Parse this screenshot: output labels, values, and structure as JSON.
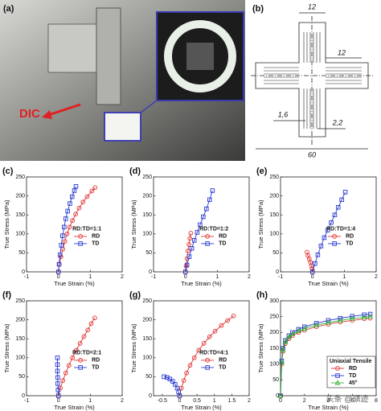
{
  "photo": {
    "label": "(a)",
    "annotation": "DIC"
  },
  "diagram": {
    "label": "(b)",
    "dimensions": [
      "12",
      "12",
      "1,6",
      "2,2",
      "60"
    ]
  },
  "watermark": "头条 @骐迹",
  "chart_data": [
    {
      "type": "line",
      "label": "(c)",
      "xlabel": "True Strain (%)",
      "ylabel": "True Stress (MPa)",
      "legend_title": "RD:TD=1:1",
      "legend": "center right",
      "xlim": [
        -1,
        2
      ],
      "xticks": [
        -1,
        0,
        1,
        2
      ],
      "ylim": [
        0,
        250
      ],
      "yticks": [
        0,
        50,
        100,
        150,
        200,
        250
      ],
      "series": [
        {
          "name": "RD",
          "color": "#e03030",
          "marker": "circle",
          "x": [
            0,
            0.03,
            0.08,
            0.14,
            0.2,
            0.27,
            0.35,
            0.44,
            0.54,
            0.65,
            0.77,
            0.9,
            1.05,
            1.15
          ],
          "values": [
            0,
            20,
            40,
            60,
            80,
            100,
            118,
            135,
            152,
            168,
            184,
            198,
            213,
            222
          ]
        },
        {
          "name": "TD",
          "color": "#2a3ad0",
          "marker": "square",
          "x": [
            0,
            0.02,
            0.05,
            0.09,
            0.13,
            0.18,
            0.23,
            0.29,
            0.36,
            0.43,
            0.5,
            0.55
          ],
          "values": [
            0,
            20,
            45,
            70,
            95,
            118,
            140,
            160,
            180,
            198,
            214,
            225
          ]
        }
      ]
    },
    {
      "type": "line",
      "label": "(d)",
      "xlabel": "True Strain (%)",
      "ylabel": "True Stress (MPa)",
      "legend_title": "RD:TD=1:2",
      "legend": "center right",
      "xlim": [
        -1,
        2
      ],
      "xticks": [
        -1,
        0,
        1,
        2
      ],
      "ylim": [
        0,
        250
      ],
      "yticks": [
        0,
        50,
        100,
        150,
        200,
        250
      ],
      "series": [
        {
          "name": "RD",
          "color": "#e03030",
          "marker": "circle",
          "x": [
            0,
            0.02,
            0.05,
            0.08,
            0.11,
            0.14,
            0.17
          ],
          "values": [
            0,
            15,
            35,
            55,
            72,
            88,
            102
          ]
        },
        {
          "name": "TD",
          "color": "#2a3ad0",
          "marker": "square",
          "x": [
            0,
            0.05,
            0.12,
            0.2,
            0.28,
            0.37,
            0.46,
            0.56,
            0.66,
            0.76,
            0.85
          ],
          "values": [
            0,
            18,
            40,
            62,
            83,
            104,
            124,
            145,
            166,
            190,
            214
          ]
        }
      ]
    },
    {
      "type": "line",
      "label": "(e)",
      "xlabel": "True Strain (%)",
      "ylabel": "True Stress (MPa)",
      "legend_title": "RD:TD=1:4",
      "legend": "center right",
      "xlim": [
        -1,
        2
      ],
      "xticks": [
        -1,
        0,
        1,
        2
      ],
      "ylim": [
        0,
        250
      ],
      "yticks": [
        0,
        50,
        100,
        150,
        200,
        250
      ],
      "series": [
        {
          "name": "RD",
          "color": "#e03030",
          "marker": "circle",
          "x": [
            0,
            -0.01,
            -0.03,
            -0.06,
            -0.1,
            -0.14,
            -0.17
          ],
          "values": [
            0,
            8,
            16,
            25,
            34,
            43,
            52
          ]
        },
        {
          "name": "TD",
          "color": "#2a3ad0",
          "marker": "square",
          "x": [
            0,
            0.08,
            0.17,
            0.27,
            0.37,
            0.48,
            0.59,
            0.7,
            0.81,
            0.92,
            1.03
          ],
          "values": [
            0,
            22,
            45,
            68,
            90,
            110,
            130,
            150,
            170,
            190,
            210
          ]
        }
      ]
    },
    {
      "type": "line",
      "label": "(f)",
      "xlabel": "True Strain (%)",
      "ylabel": "True Stress (MPa)",
      "legend_title": "RD:TD=2:1",
      "legend": "center right",
      "xlim": [
        -1,
        2
      ],
      "xticks": [
        -1,
        0,
        1,
        2
      ],
      "ylim": [
        0,
        250
      ],
      "yticks": [
        0,
        50,
        100,
        150,
        200,
        250
      ],
      "series": [
        {
          "name": "RD",
          "color": "#e03030",
          "marker": "circle",
          "x": [
            0,
            0.06,
            0.14,
            0.23,
            0.33,
            0.44,
            0.56,
            0.68,
            0.8,
            0.92,
            1.03,
            1.14
          ],
          "values": [
            0,
            20,
            40,
            60,
            80,
            100,
            120,
            138,
            156,
            173,
            190,
            205
          ]
        },
        {
          "name": "TD",
          "color": "#2a3ad0",
          "marker": "square",
          "x": [
            0,
            -0.01,
            -0.02,
            -0.02,
            -0.03,
            -0.03,
            -0.03
          ],
          "values": [
            0,
            15,
            32,
            48,
            65,
            82,
            100
          ]
        }
      ]
    },
    {
      "type": "line",
      "label": "(g)",
      "xlabel": "True Strain (%)",
      "ylabel": "True Stress (MPa)",
      "legend_title": "RD:TD=4:1",
      "legend": "center right",
      "xlim": [
        -0.75,
        2
      ],
      "xticks": [
        -0.5,
        0,
        0.5,
        1,
        1.5,
        2
      ],
      "ylim": [
        0,
        250
      ],
      "yticks": [
        0,
        50,
        100,
        150,
        200,
        250
      ],
      "series": [
        {
          "name": "RD",
          "color": "#e03030",
          "marker": "circle",
          "x": [
            0,
            0.05,
            0.12,
            0.2,
            0.3,
            0.42,
            0.55,
            0.7,
            0.86,
            1.02,
            1.2,
            1.38,
            1.55
          ],
          "values": [
            0,
            20,
            40,
            60,
            80,
            100,
            120,
            138,
            155,
            170,
            185,
            198,
            210
          ]
        },
        {
          "name": "TD",
          "color": "#2a3ad0",
          "marker": "square",
          "x": [
            0,
            -0.03,
            -0.07,
            -0.13,
            -0.2,
            -0.28,
            -0.36,
            -0.45
          ],
          "values": [
            0,
            10,
            20,
            30,
            38,
            44,
            48,
            50
          ]
        }
      ]
    },
    {
      "type": "line",
      "label": "(h)",
      "xlabel": "True Strain (%)",
      "ylabel": "True Stress (MPa)",
      "legend_title": "Uniaxial Tensile",
      "legend": "lower right",
      "xlim": [
        0,
        8
      ],
      "xticks": [
        0,
        2,
        4,
        6,
        8
      ],
      "ylim": [
        0,
        300
      ],
      "yticks": [
        0,
        50,
        100,
        150,
        200,
        250,
        300
      ],
      "series": [
        {
          "name": "RD",
          "color": "#e03030",
          "marker": "circle",
          "x": [
            0,
            0.1,
            0.2,
            0.4,
            0.7,
            1,
            1.5,
            2,
            3,
            4,
            5,
            6,
            7,
            7.5
          ],
          "values": [
            0,
            100,
            140,
            165,
            180,
            190,
            200,
            207,
            218,
            226,
            233,
            238,
            243,
            245
          ]
        },
        {
          "name": "TD",
          "color": "#2a3ad0",
          "marker": "square",
          "x": [
            0,
            0.1,
            0.2,
            0.4,
            0.7,
            1,
            1.5,
            2,
            3,
            4,
            5,
            6,
            7,
            7.5
          ],
          "values": [
            0,
            110,
            150,
            175,
            190,
            200,
            210,
            218,
            229,
            238,
            245,
            251,
            256,
            258
          ]
        },
        {
          "name": "45°",
          "color": "#30b030",
          "marker": "triangle",
          "x": [
            0,
            0.1,
            0.2,
            0.4,
            0.7,
            1,
            1.5,
            2,
            3,
            4,
            5,
            6,
            7,
            7.5
          ],
          "values": [
            0,
            105,
            145,
            170,
            185,
            195,
            205,
            212,
            223,
            231,
            238,
            244,
            248,
            250
          ]
        }
      ]
    }
  ]
}
